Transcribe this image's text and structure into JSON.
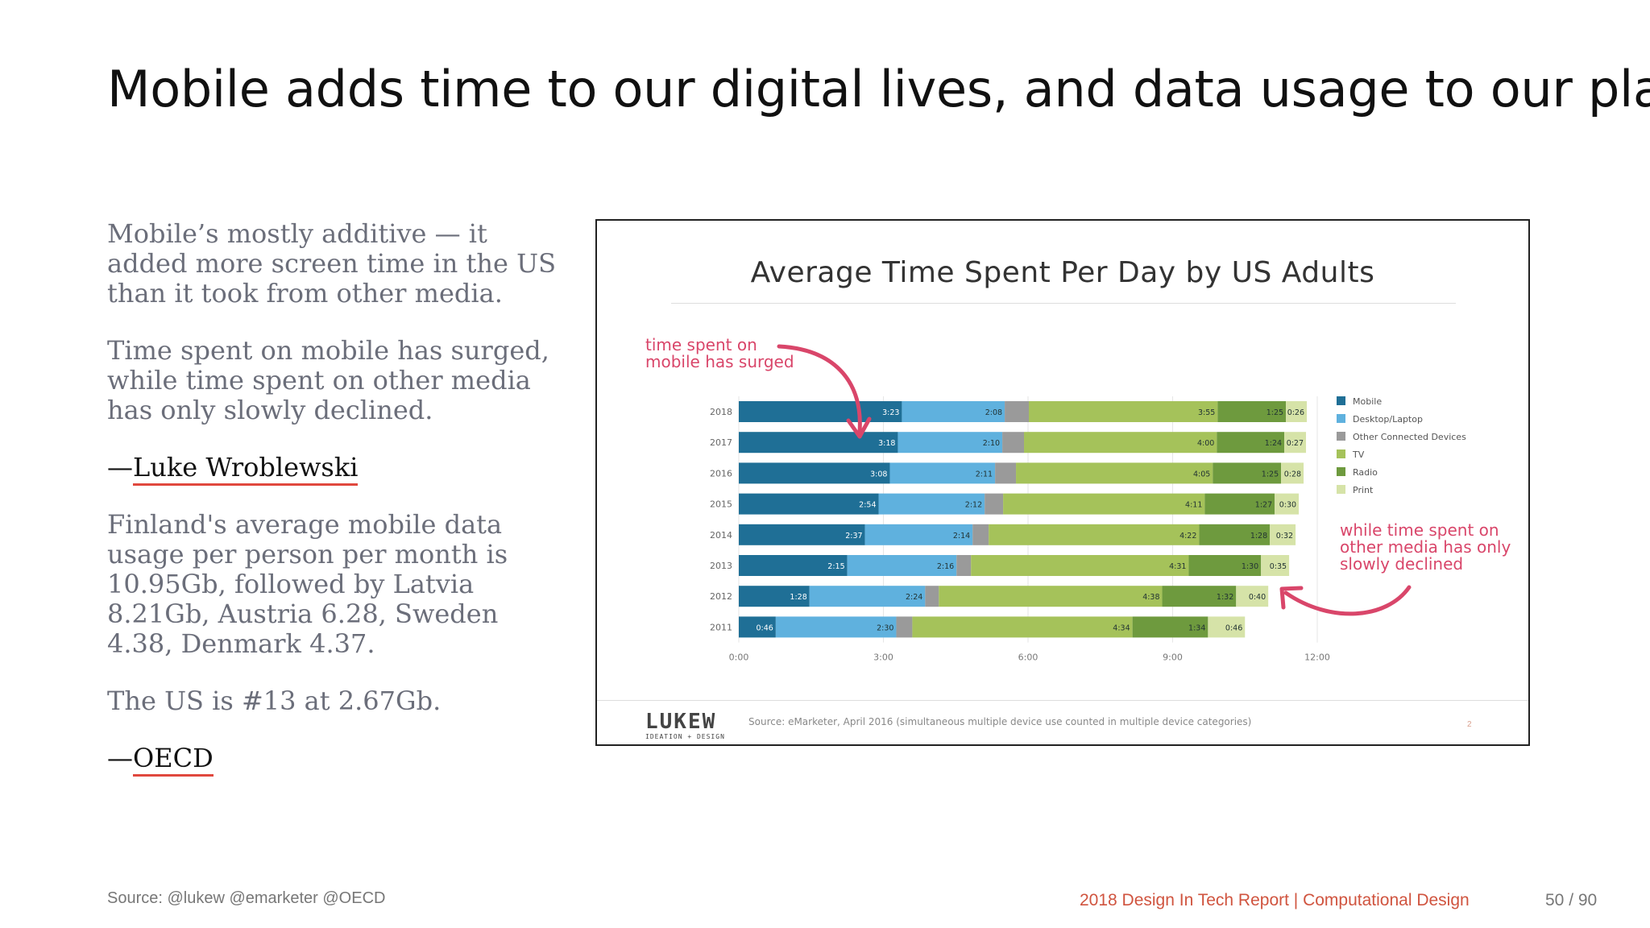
{
  "slide": {
    "title": "Mobile adds time to our digital lives, and data usage to our plans"
  },
  "left": {
    "para1": "Mobile’s mostly additive — it added more screen time in the US than it took from other media.",
    "para2": "Time spent on mobile has surged, while time spent on other media has only slowly declined.",
    "attr1_dash": "—",
    "attr1_name": "Luke Wroblewski",
    "para3": "Finland's average mobile data usage per person per month is 10.95Gb, followed by Latvia 8.21Gb, Austria 6.28, Sweden 4.38, Denmark 4.37.",
    "para4": "The US is #13 at 2.67Gb.",
    "attr2_dash": "—",
    "attr2_name": "OECD"
  },
  "figure": {
    "annotation_top_line1": "time spent on",
    "annotation_top_line2": "mobile has surged",
    "annotation_right_line1": "while time spent on",
    "annotation_right_line2": "other media has only",
    "annotation_right_line3": "slowly declined",
    "logo_main": "LUKEW",
    "logo_sub": "IDEATION + DESIGN",
    "source": "Source: eMarketer, April 2016 (simultaneous multiple device use counted in multiple device categories)",
    "page": "2",
    "colors": {
      "annotation": "#d9466a",
      "Mobile": "#1f6f96",
      "Desktop/Laptop": "#5fb1de",
      "Other Connected Devices": "#9a9a9a",
      "TV": "#a5c25a",
      "Radio": "#6e9a3e",
      "Print": "#d6e3a8"
    }
  },
  "chart_data": {
    "type": "bar",
    "orientation": "horizontal",
    "stacked": true,
    "title": "Average Time Spent Per Day by US Adults",
    "categories": [
      "2018",
      "2017",
      "2016",
      "2015",
      "2014",
      "2013",
      "2012",
      "2011"
    ],
    "series": [
      {
        "name": "Mobile",
        "values": [
          "3:23",
          "3:18",
          "3:08",
          "2:54",
          "2:37",
          "2:15",
          "1:28",
          "0:46"
        ]
      },
      {
        "name": "Desktop/Laptop",
        "values": [
          "2:08",
          "2:10",
          "2:11",
          "2:12",
          "2:14",
          "2:16",
          "2:24",
          "2:30"
        ]
      },
      {
        "name": "Other Connected Devices",
        "values": [
          "0:30",
          "0:27",
          "0:26",
          "0:23",
          "0:20",
          "0:18",
          "0:17",
          "0:20"
        ]
      },
      {
        "name": "TV",
        "values": [
          "3:55",
          "4:00",
          "4:05",
          "4:11",
          "4:22",
          "4:31",
          "4:38",
          "4:34"
        ]
      },
      {
        "name": "Radio",
        "values": [
          "1:25",
          "1:24",
          "1:25",
          "1:27",
          "1:28",
          "1:30",
          "1:32",
          "1:34"
        ]
      },
      {
        "name": "Print",
        "values": [
          "0:26",
          "0:27",
          "0:28",
          "0:30",
          "0:32",
          "0:35",
          "0:40",
          "0:46"
        ]
      }
    ],
    "labeled_series": [
      "Mobile",
      "Desktop/Laptop",
      "TV",
      "Radio",
      "Print"
    ],
    "xticks": [
      "0:00",
      "3:00",
      "6:00",
      "9:00",
      "12:00"
    ],
    "xlim_minutes": [
      0,
      720
    ],
    "legend": [
      "Mobile",
      "Desktop/Laptop",
      "Other Connected Devices",
      "TV",
      "Radio",
      "Print"
    ],
    "legend_position": "right"
  },
  "footer": {
    "source": "Source: @lukew @emarketer @OECD",
    "report": "2018 Design In Tech Report | Computational Design",
    "page": "50 / 90"
  }
}
